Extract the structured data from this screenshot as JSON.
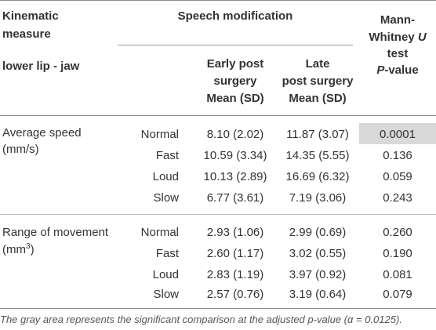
{
  "header": {
    "col1_line1": "Kinematic",
    "col1_line2": "measure",
    "col1_line3": "lower lip - jaw",
    "speech_modification": "Speech modification",
    "early_line1": "Early post",
    "early_line2": "surgery",
    "early_line3": "Mean (SD)",
    "late_line1": "Late",
    "late_line2": "post surgery",
    "late_line3": "Mean (SD)",
    "mw_line1": "Mann-",
    "mw_line2_a": "Whitney ",
    "mw_line2_b": "U",
    "mw_line3": "test",
    "mw_line4_a": "P",
    "mw_line4_b": "-value"
  },
  "groups": [
    {
      "measure_line1": "Average speed",
      "measure_line2": "(mm/s)",
      "rows": [
        {
          "condition": "Normal",
          "early": "8.10 (2.02)",
          "late": "11.87 (3.07)",
          "p": "0.0001"
        },
        {
          "condition": "Fast",
          "early": "10.59 (3.34)",
          "late": "14.35 (5.55)",
          "p": "0.136"
        },
        {
          "condition": "Loud",
          "early": "10.13 (2.89)",
          "late": "16.69 (6.32)",
          "p": "0.059"
        },
        {
          "condition": "Slow",
          "early": "6.77 (3.61)",
          "late": "7.19 (3.06)",
          "p": "0.243"
        }
      ]
    },
    {
      "measure_line1": "Range of movement",
      "measure_line2_a": "(mm",
      "measure_line2_sup": "3",
      "measure_line2_b": ")",
      "rows": [
        {
          "condition": "Normal",
          "early": "2.93 (1.06)",
          "late": "2.99 (0.69)",
          "p": "0.260"
        },
        {
          "condition": "Fast",
          "early": "2.60 (1.17)",
          "late": "3.02 (0.55)",
          "p": "0.190"
        },
        {
          "condition": "Loud",
          "early": "2.83 (1.19)",
          "late": "3.97 (0.92)",
          "p": "0.081"
        },
        {
          "condition": "Slow",
          "early": "2.57 (0.76)",
          "late": "3.19 (0.64)",
          "p": "0.079"
        }
      ]
    }
  ],
  "footnote": "The gray area represents the significant comparison at the adjusted p-value (α = 0.0125)."
}
